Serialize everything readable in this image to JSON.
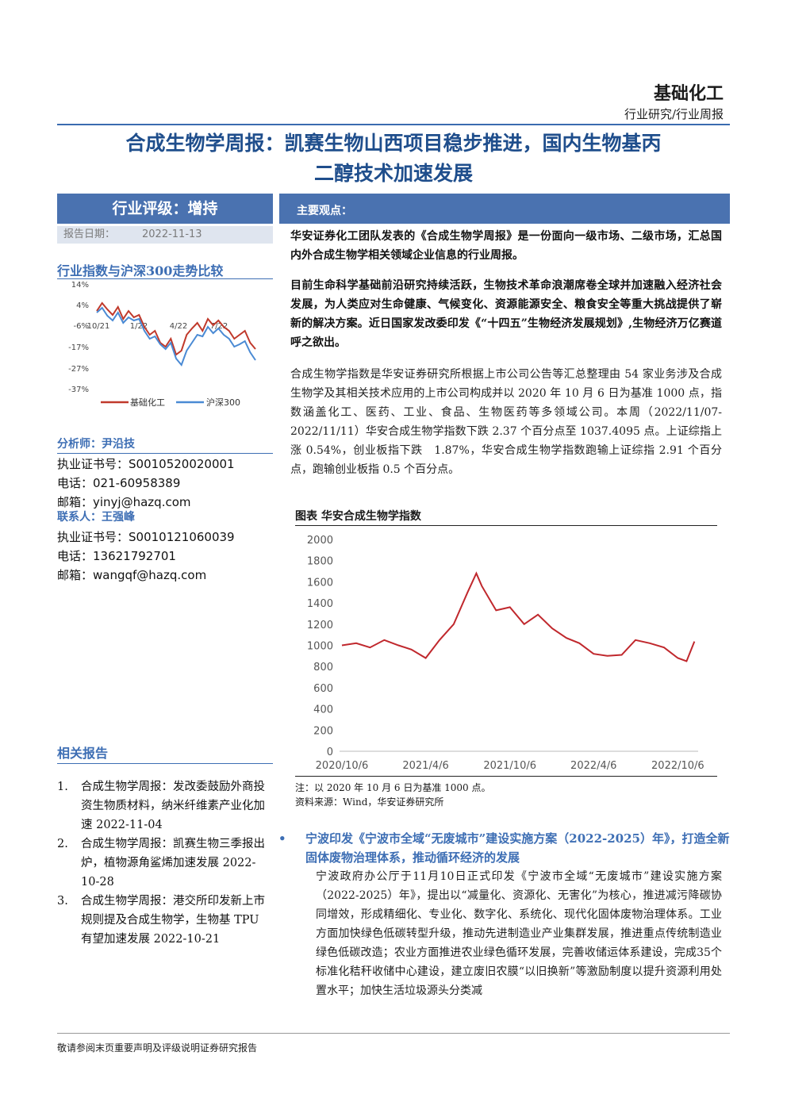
{
  "header": {
    "industry": "基础化工",
    "report_type": "行业研究/行业周报"
  },
  "title_line1": "合成生物学周报：凯赛生物山西项目稳步推进，国内生物基丙",
  "title_line2": "二醇技术加速发展",
  "rating": {
    "label": "行业评级：增持",
    "date_label": "报告日期：",
    "date_value": "2022-11-13"
  },
  "main_view_label": "主要观点：",
  "mini_chart": {
    "title": "行业指数与沪深300走势比较",
    "y_ticks": [
      "14%",
      "4%",
      "-6%",
      "-17%",
      "-27%",
      "-37%"
    ],
    "x_ticks": [
      "10/21",
      "1/22",
      "4/22",
      "7/22"
    ],
    "legend": [
      "基础化工",
      "沪深300"
    ],
    "colors": {
      "series1": "#c0392b",
      "series2": "#4a8ad4"
    }
  },
  "analyst": {
    "heading": "分析师：尹沿技",
    "cert": "执业证书号：S0010520020001",
    "phone": "电话：021-60958389",
    "email": "邮箱：yinyj@hazq.com"
  },
  "contact": {
    "heading": "联系人：王强峰",
    "cert": "执业证书号：S0010121060039",
    "phone": "电话：13621792701",
    "email": "邮箱：wangqf@hazq.com"
  },
  "related": {
    "heading": "相关报告",
    "items": [
      {
        "num": "1.",
        "text": "合成生物学周报：发改委鼓励外商投资生物质材料，纳米纤维素产业化加速 2022-11-04"
      },
      {
        "num": "2.",
        "text": "合成生物学周报：凯赛生物三季报出炉，植物源角鲨烯加速发展 2022-10-28"
      },
      {
        "num": "3.",
        "text": "合成生物学周报：港交所印发新上市规则提及合成生物学，生物基 TPU 有望加速发展 2022-10-21"
      }
    ]
  },
  "paragraphs": {
    "p1": "华安证券化工团队发表的《合成生物学周报》是一份面向一级市场、二级市场，汇总国内外合成生物学相关领域企业信息的行业周报。",
    "p2": "目前生命科学基础前沿研究持续活跃，生物技术革命浪潮席卷全球并加速融入经济社会发展，为人类应对生命健康、气候变化、资源能源安全、粮食安全等重大挑战提供了崭新的解决方案。近日国家发改委印发《“十四五”生物经济发展规划》,生物经济万亿赛道呼之欲出。",
    "p3": "合成生物学指数是华安证券研究所根据上市公司公告等汇总整理由 54 家业务涉及合成生物学及其相关技术应用的上市公司构成并以 2020 年 10 月 6 日为基准 1000 点，指数涵盖化工、医药、工业、食品、生物医药等多领域公司。本周（2022/11/07-2022/11/11）华安合成生物学指数下跌 2.37 个百分点至 1037.4095 点。上证综指上涨 0.54%，创业板指下跌　1.87%，华安合成生物学指数跑输上证综指 2.91 个百分点，跑输创业板指 0.5 个百分点。"
  },
  "chart_data": {
    "type": "line",
    "title": "图表 华安合成生物学指数",
    "x_ticks": [
      "2020/10/6",
      "2021/4/6",
      "2021/10/6",
      "2022/4/6",
      "2022/10/6"
    ],
    "ylim": [
      0,
      2000
    ],
    "y_ticks": [
      0,
      200,
      400,
      600,
      800,
      1000,
      1200,
      1400,
      1600,
      1800,
      2000
    ],
    "series": [
      {
        "color": "#c0282d",
        "x": [
          "2020/10/6",
          "2020/11/6",
          "2020/12/6",
          "2021/1/6",
          "2021/2/6",
          "2021/3/6",
          "2021/4/6",
          "2021/5/6",
          "2021/6/6",
          "2021/7/6",
          "2021/7/25",
          "2021/8/6",
          "2021/9/6",
          "2021/10/6",
          "2021/11/6",
          "2021/12/6",
          "2022/1/6",
          "2022/2/6",
          "2022/3/6",
          "2022/4/6",
          "2022/5/6",
          "2022/6/6",
          "2022/7/6",
          "2022/8/6",
          "2022/9/6",
          "2022/10/6",
          "2022/10/25",
          "2022/11/11"
        ],
        "values": [
          1000,
          1020,
          980,
          1050,
          1000,
          960,
          880,
          1050,
          1200,
          1500,
          1680,
          1560,
          1330,
          1360,
          1200,
          1290,
          1160,
          1070,
          1020,
          920,
          900,
          910,
          1050,
          1020,
          980,
          880,
          850,
          1037
        ]
      }
    ],
    "note": "注：以 2020 年 10 月 6 日为基准 1000 点。",
    "source": "资料来源：Wind，华安证券研究所"
  },
  "bullet": {
    "heading": "宁波印发《宁波市全域“无废城市”建设实施方案（2022-2025）年》，打造全新固体废物治理体系，推动循环经济的发展",
    "body": "宁波政府办公厅于11月10日正式印发《宁波市全域“无废城市”建设实施方案（2022-2025）年》，提出以“减量化、资源化、无害化”为核心，推进减污降碳协同增效，形成精细化、专业化、数字化、系统化、现代化固体废物治理体系。工业方面加快绿色低碳转型升级，推动先进制造业产业集群发展，推进重点传统制造业绿色低碳改造；农业方面推进农业绿色循环发展，完善收储运体系建设，完成35个标准化秸秆收储中心建设，建立废旧农膜“以旧换新”等激励制度以提升资源利用处置水平；加快生活垃圾源头分类减"
  },
  "footer": "敬请参阅末页重要声明及评级说明证券研究报告"
}
